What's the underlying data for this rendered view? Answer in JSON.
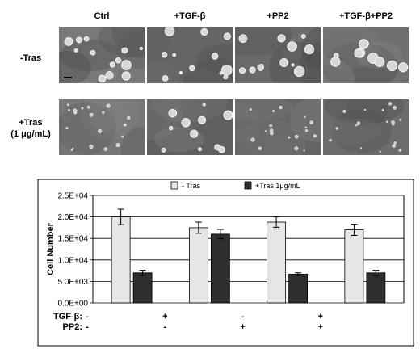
{
  "panel_a": {
    "column_labels": [
      "Ctrl",
      "+TGF-β",
      "+PP2",
      "+TGF-β+PP2"
    ],
    "row_labels": [
      {
        "line1": "-Tras",
        "line2": ""
      },
      {
        "line1": "+Tras",
        "line2": "(1 μg/mL)"
      }
    ]
  },
  "chart_data": {
    "type": "bar",
    "title": "",
    "xlabel": "",
    "ylabel": "Cell Number",
    "ylim": [
      0,
      25000
    ],
    "yticks": [
      0,
      5000,
      10000,
      15000,
      20000,
      25000
    ],
    "ytick_labels": [
      "0.0E+00",
      "5.0E+03",
      "1.0E+04",
      "1.5E+04",
      "2.0E+04",
      "2.5E+04"
    ],
    "grid": true,
    "legend_position": "top",
    "condition_rows": [
      {
        "label": "TGF-β:",
        "values": [
          "-",
          "+",
          "-",
          "+"
        ]
      },
      {
        "label": "PP2:",
        "values": [
          "-",
          "-",
          "+",
          "+"
        ]
      }
    ],
    "series": [
      {
        "name": "- Tras",
        "color": "#e6e6e6",
        "values": [
          20000,
          17500,
          18800,
          17000
        ],
        "errors": [
          1800,
          1300,
          1200,
          1300
        ]
      },
      {
        "name": "+Tras 1μg/mL",
        "color": "#2e2e2e",
        "values": [
          7000,
          16000,
          6700,
          7000
        ],
        "errors": [
          600,
          1100,
          300,
          600
        ]
      }
    ]
  }
}
